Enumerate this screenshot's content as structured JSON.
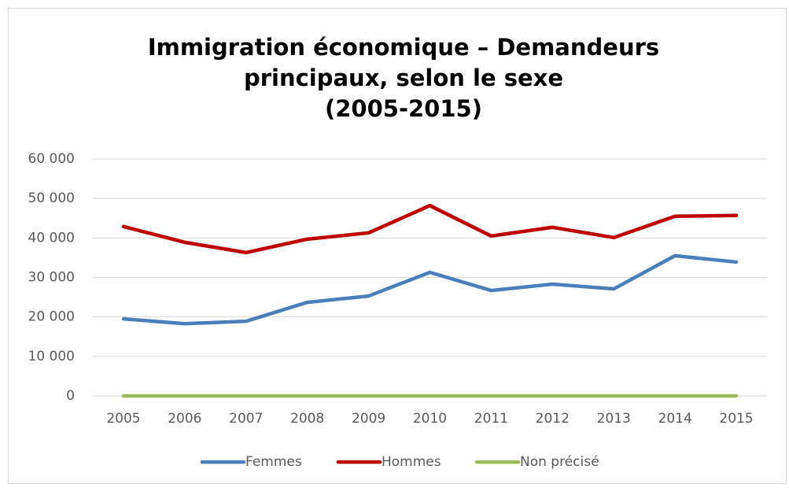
{
  "chart_data": {
    "type": "line",
    "title": [
      "Immigration économique – Demandeurs",
      "principaux, selon le sexe",
      "(2005-2015)"
    ],
    "categories": [
      "2005",
      "2006",
      "2007",
      "2008",
      "2009",
      "2010",
      "2011",
      "2012",
      "2013",
      "2014",
      "2015"
    ],
    "series": [
      {
        "name": "Femmes",
        "color": "#4a7ebb",
        "values": [
          19500,
          18300,
          18900,
          23700,
          25300,
          31300,
          26700,
          28300,
          27100,
          35500,
          33900
        ]
      },
      {
        "name": "Hommes",
        "color": "#c00000",
        "values": [
          42900,
          38900,
          36300,
          39700,
          41300,
          48200,
          40500,
          42700,
          40100,
          45500,
          45700
        ]
      },
      {
        "name": "Non précisé",
        "color": "#9bbb59",
        "values": [
          0,
          0,
          0,
          0,
          0,
          0,
          0,
          0,
          0,
          0,
          0
        ]
      }
    ],
    "ylim": [
      0,
      60000
    ],
    "yticks": [
      0,
      {
        "value": 10000,
        "label": "10 000"
      },
      {
        "value": 20000,
        "label": "20 000"
      },
      {
        "value": 30000,
        "label": "30 000"
      },
      {
        "value": 40000,
        "label": "40 000"
      },
      {
        "value": 50000,
        "label": "50 000"
      },
      {
        "value": 60000,
        "label": "60 000"
      }
    ],
    "grid": true,
    "legend": "bottom"
  }
}
